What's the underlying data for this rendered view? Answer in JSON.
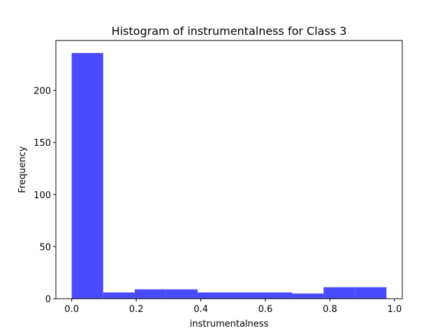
{
  "chart_data": {
    "type": "bar",
    "title": "Histogram of instrumentalness for Class 3",
    "xlabel": "instrumentalness",
    "ylabel": "Frequency",
    "bin_edges": [
      0.0,
      0.0975,
      0.195,
      0.2925,
      0.39,
      0.4875,
      0.585,
      0.6825,
      0.78,
      0.8775,
      0.975
    ],
    "values": [
      236,
      6,
      9,
      9,
      6,
      6,
      6,
      5,
      11,
      11
    ],
    "xlim": [
      -0.049,
      1.024
    ],
    "ylim": [
      0,
      248
    ],
    "xticks": [
      0.0,
      0.2,
      0.4,
      0.6,
      0.8,
      1.0
    ],
    "xtick_labels": [
      "0.0",
      "0.2",
      "0.4",
      "0.6",
      "0.8",
      "1.0"
    ],
    "yticks": [
      0,
      50,
      100,
      150,
      200
    ],
    "ytick_labels": [
      "0",
      "50",
      "100",
      "150",
      "200"
    ],
    "bar_color": "#4a4aff",
    "grid": false,
    "legend": "none"
  }
}
